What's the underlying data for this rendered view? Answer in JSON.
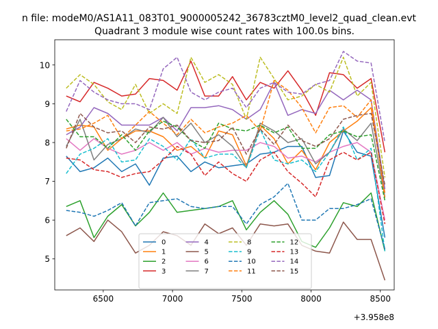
{
  "chart_data": {
    "type": "line",
    "suptitle": "n file: modeM0/AS1A11_083T01_9000005242_36783cztM0_level2_quad_clean.evt",
    "title": "Quadrant 3 module wise count rates with 100.0s bins.",
    "xlabel": "",
    "ylabel": "",
    "x_offset_label": "+3.958e8",
    "xlim": [
      6150,
      8600
    ],
    "ylim": [
      4.2,
      10.65
    ],
    "xticks": [
      6500,
      7000,
      7500,
      8000,
      8500
    ],
    "yticks": [
      5,
      6,
      7,
      8,
      9,
      10
    ],
    "x": [
      6233,
      6333,
      6433,
      6533,
      6633,
      6733,
      6833,
      6933,
      7033,
      7133,
      7233,
      7333,
      7433,
      7533,
      7633,
      7733,
      7833,
      7933,
      8033,
      8133,
      8233,
      8333,
      8433,
      8533
    ],
    "legend": {
      "placement": "lower center",
      "columns": 4
    },
    "series": [
      {
        "name": "0",
        "color": "#1f77b4",
        "dash": "solid",
        "values": [
          7.65,
          7.25,
          7.35,
          7.6,
          7.25,
          7.45,
          6.9,
          7.6,
          7.65,
          7.25,
          7.5,
          7.35,
          7.4,
          7.45,
          7.7,
          7.75,
          7.9,
          7.9,
          7.1,
          7.15,
          8.3,
          7.75,
          7.65,
          5.55
        ]
      },
      {
        "name": "1",
        "color": "#ff7f0e",
        "dash": "solid",
        "values": [
          8.35,
          8.45,
          8.4,
          7.8,
          8.1,
          8.3,
          8.3,
          8.15,
          7.8,
          7.9,
          7.6,
          8.3,
          8.2,
          7.4,
          8.45,
          8.1,
          7.45,
          7.8,
          7.3,
          8.0,
          8.3,
          8.55,
          8.9,
          6.7
        ]
      },
      {
        "name": "2",
        "color": "#2ca02c",
        "dash": "solid",
        "values": [
          6.35,
          6.5,
          5.55,
          6.1,
          6.4,
          5.85,
          6.2,
          6.7,
          6.2,
          6.25,
          6.3,
          6.35,
          6.5,
          5.75,
          6.2,
          6.5,
          6.15,
          5.45,
          5.3,
          5.8,
          6.45,
          6.35,
          6.7,
          5.2
        ]
      },
      {
        "name": "3",
        "color": "#d62728",
        "dash": "solid",
        "values": [
          9.2,
          9.05,
          9.55,
          9.4,
          9.2,
          9.25,
          9.65,
          9.6,
          9.35,
          10.1,
          9.2,
          9.2,
          9.7,
          9.1,
          9.55,
          9.4,
          9.85,
          9.35,
          8.7,
          9.8,
          9.75,
          9.4,
          9.65,
          7.75
        ]
      },
      {
        "name": "4",
        "color": "#9467bd",
        "dash": "solid",
        "values": [
          8.2,
          8.4,
          8.9,
          8.75,
          8.45,
          8.45,
          8.45,
          8.65,
          8.3,
          8.9,
          8.9,
          8.95,
          8.85,
          8.6,
          8.85,
          9.55,
          8.7,
          8.85,
          8.75,
          9.35,
          9.1,
          9.35,
          9.1,
          6.8
        ]
      },
      {
        "name": "5",
        "color": "#8c564b",
        "dash": "solid",
        "values": [
          5.6,
          5.8,
          5.45,
          6.0,
          5.7,
          5.15,
          5.35,
          5.7,
          5.6,
          5.35,
          5.9,
          5.65,
          5.8,
          5.35,
          5.9,
          5.85,
          5.9,
          5.35,
          5.2,
          5.15,
          5.95,
          5.5,
          5.5,
          4.45
        ]
      },
      {
        "name": "6",
        "color": "#e377c2",
        "dash": "solid",
        "values": [
          8.1,
          7.8,
          8.1,
          7.85,
          7.7,
          7.8,
          8.0,
          7.8,
          8.0,
          7.7,
          7.85,
          7.75,
          7.8,
          7.8,
          8.0,
          7.9,
          7.6,
          7.65,
          7.5,
          7.75,
          7.9,
          8.0,
          7.75,
          6.0
        ]
      },
      {
        "name": "7",
        "color": "#7f7f7f",
        "dash": "solid",
        "values": [
          7.9,
          8.6,
          7.55,
          7.95,
          8.1,
          8.35,
          8.25,
          8.65,
          8.15,
          8.5,
          8.0,
          8.2,
          7.9,
          7.35,
          8.5,
          8.3,
          8.0,
          8.1,
          7.45,
          7.75,
          8.35,
          8.05,
          8.5,
          6.6
        ]
      },
      {
        "name": "8",
        "color": "#bcbd22",
        "dash": "dashed",
        "values": [
          9.4,
          9.75,
          9.5,
          9.05,
          8.85,
          9.5,
          8.75,
          9.0,
          8.75,
          10.2,
          9.55,
          9.75,
          9.5,
          8.6,
          10.2,
          9.65,
          9.1,
          9.2,
          9.5,
          9.3,
          10.2,
          9.2,
          9.55,
          7.1
        ]
      },
      {
        "name": "9",
        "color": "#17becf",
        "dash": "dashed",
        "values": [
          7.2,
          7.7,
          7.85,
          8.1,
          7.5,
          7.55,
          8.1,
          7.9,
          7.55,
          8.1,
          7.6,
          7.7,
          7.7,
          7.35,
          8.35,
          7.55,
          7.45,
          7.55,
          7.25,
          7.75,
          8.4,
          7.55,
          7.85,
          5.2
        ]
      },
      {
        "name": "10",
        "color": "#1f77b4",
        "dash": "dashed",
        "values": [
          6.25,
          6.2,
          6.1,
          6.25,
          6.45,
          5.85,
          6.45,
          6.5,
          6.55,
          6.35,
          6.3,
          6.35,
          6.35,
          5.9,
          6.4,
          6.6,
          6.95,
          6.0,
          6.0,
          6.3,
          6.3,
          6.4,
          6.55,
          5.25
        ]
      },
      {
        "name": "11",
        "color": "#ff7f0e",
        "dash": "dashed",
        "values": [
          8.3,
          8.35,
          8.5,
          8.7,
          8.1,
          8.45,
          8.8,
          8.5,
          8.2,
          8.6,
          8.25,
          8.4,
          8.5,
          8.7,
          8.3,
          9.6,
          9.35,
          8.9,
          8.25,
          8.9,
          8.95,
          8.65,
          9.1,
          6.55
        ]
      },
      {
        "name": "12",
        "color": "#2ca02c",
        "dash": "dashed",
        "values": [
          8.6,
          8.15,
          8.15,
          7.85,
          8.2,
          7.8,
          8.3,
          8.55,
          8.4,
          8.05,
          7.85,
          8.5,
          8.35,
          8.3,
          8.45,
          8.25,
          8.4,
          7.85,
          7.85,
          8.2,
          8.3,
          8.15,
          8.2,
          6.5
        ]
      },
      {
        "name": "13",
        "color": "#d62728",
        "dash": "dashed",
        "values": [
          7.6,
          7.55,
          7.3,
          7.25,
          7.1,
          7.2,
          7.25,
          7.55,
          7.9,
          7.7,
          7.15,
          7.5,
          7.2,
          7.0,
          7.55,
          7.75,
          7.25,
          6.95,
          6.6,
          7.55,
          7.75,
          7.55,
          7.75,
          5.9
        ]
      },
      {
        "name": "14",
        "color": "#9467bd",
        "dash": "dashed",
        "values": [
          8.8,
          9.6,
          9.3,
          9.1,
          9.0,
          9.0,
          8.85,
          9.9,
          10.2,
          9.3,
          9.1,
          9.3,
          9.4,
          8.9,
          9.4,
          9.55,
          9.3,
          9.25,
          9.5,
          9.6,
          10.35,
          10.1,
          10.05,
          8.0
        ]
      },
      {
        "name": "15",
        "color": "#8c564b",
        "dash": "dashed",
        "values": [
          7.85,
          8.75,
          8.4,
          8.25,
          8.3,
          8.0,
          8.4,
          8.35,
          8.45,
          8.05,
          8.0,
          8.05,
          8.4,
          7.7,
          8.35,
          7.95,
          8.45,
          8.05,
          7.9,
          8.1,
          8.6,
          8.7,
          8.75,
          6.9
        ]
      }
    ]
  }
}
